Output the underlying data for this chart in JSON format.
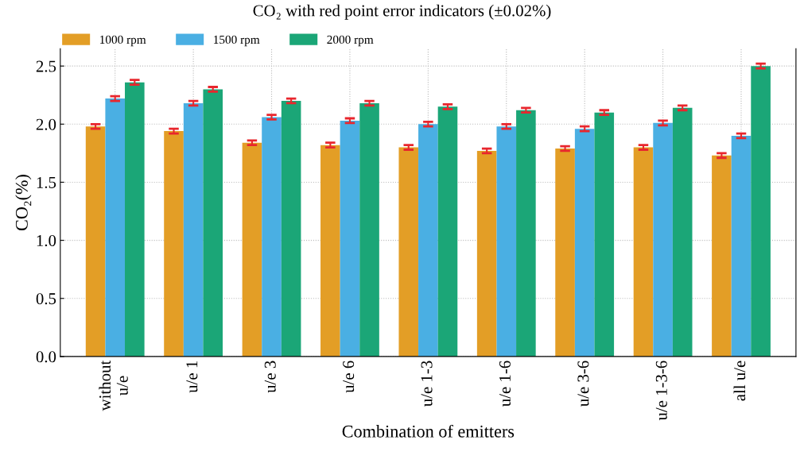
{
  "chart_data": {
    "type": "bar",
    "title": "CO₂ with red point error indicators (±0.02%)",
    "xlabel": "Combination of emitters",
    "ylabel": "CO₂(%)",
    "categories": [
      "without\nu/e",
      "u/e 1",
      "u/e 3",
      "u/e 6",
      "u/e 1-3",
      "u/e 1-6",
      "u/e 3-6",
      "u/e 1-3-6",
      "all u/e"
    ],
    "series": [
      {
        "name": "1000 rpm",
        "color": "#e39e26",
        "values": [
          1.98,
          1.94,
          1.84,
          1.82,
          1.8,
          1.77,
          1.79,
          1.8,
          1.73
        ],
        "errors": [
          0.02,
          0.02,
          0.02,
          0.02,
          0.02,
          0.02,
          0.02,
          0.02,
          0.02
        ]
      },
      {
        "name": "1500 rpm",
        "color": "#4aafe3",
        "values": [
          2.22,
          2.18,
          2.06,
          2.03,
          2.0,
          1.98,
          1.96,
          2.01,
          1.9
        ],
        "errors": [
          0.02,
          0.02,
          0.02,
          0.02,
          0.02,
          0.02,
          0.02,
          0.02,
          0.02
        ]
      },
      {
        "name": "2000 rpm",
        "color": "#1ba677",
        "values": [
          2.36,
          2.3,
          2.2,
          2.18,
          2.15,
          2.12,
          2.1,
          2.14,
          2.5
        ],
        "errors": [
          0.02,
          0.02,
          0.02,
          0.02,
          0.02,
          0.02,
          0.02,
          0.02,
          0.02
        ]
      }
    ],
    "ylim": [
      0,
      2.65
    ],
    "yticks": [
      {
        "value": 0,
        "label": "0.0"
      },
      0.5,
      {
        "value": 1,
        "label": "1.0"
      },
      1.5,
      {
        "value": 2,
        "label": "2.0"
      },
      2.5
    ],
    "grid": true,
    "legend": "top left",
    "marker": "cross"
  }
}
